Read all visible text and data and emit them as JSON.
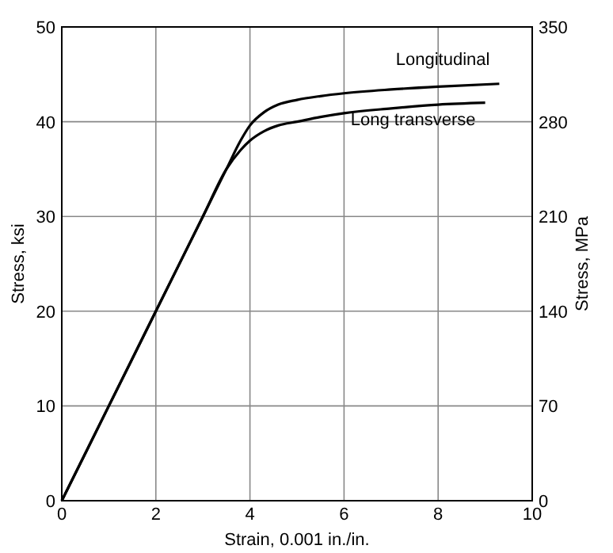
{
  "chart_data": {
    "type": "line",
    "xlabel": "Strain, 0.001 in./in.",
    "ylabel": "Stress, ksi",
    "y2label": "Stress, MPa",
    "xlim": [
      0,
      10
    ],
    "xticks": [
      0,
      2,
      4,
      6,
      8,
      10
    ],
    "ylim": [
      0,
      50
    ],
    "yticks": [
      0,
      10,
      20,
      30,
      40,
      50
    ],
    "y2lim": [
      0,
      350
    ],
    "y2ticks": [
      0,
      70,
      140,
      210,
      280,
      350
    ],
    "grid": true,
    "legend": false,
    "marker": "none",
    "line_style": "solid",
    "series": [
      {
        "name": "Longitudinal",
        "color": "#000000",
        "x": [
          0,
          1,
          2,
          3,
          3.5,
          3.8,
          4.0,
          4.3,
          4.6,
          5,
          5.5,
          6,
          7,
          8,
          9.3
        ],
        "values": [
          0,
          10,
          20,
          30,
          35,
          38,
          39.6,
          41,
          41.8,
          42.3,
          42.7,
          43,
          43.4,
          43.7,
          44
        ]
      },
      {
        "name": "Long transverse",
        "color": "#000000",
        "x": [
          0,
          1,
          2,
          3,
          3.5,
          3.8,
          4.0,
          4.3,
          4.6,
          5,
          5.5,
          6,
          7,
          8,
          9
        ],
        "values": [
          0,
          10,
          20,
          30,
          35,
          37,
          38,
          39,
          39.6,
          40,
          40.5,
          40.9,
          41.4,
          41.8,
          42
        ]
      }
    ]
  }
}
